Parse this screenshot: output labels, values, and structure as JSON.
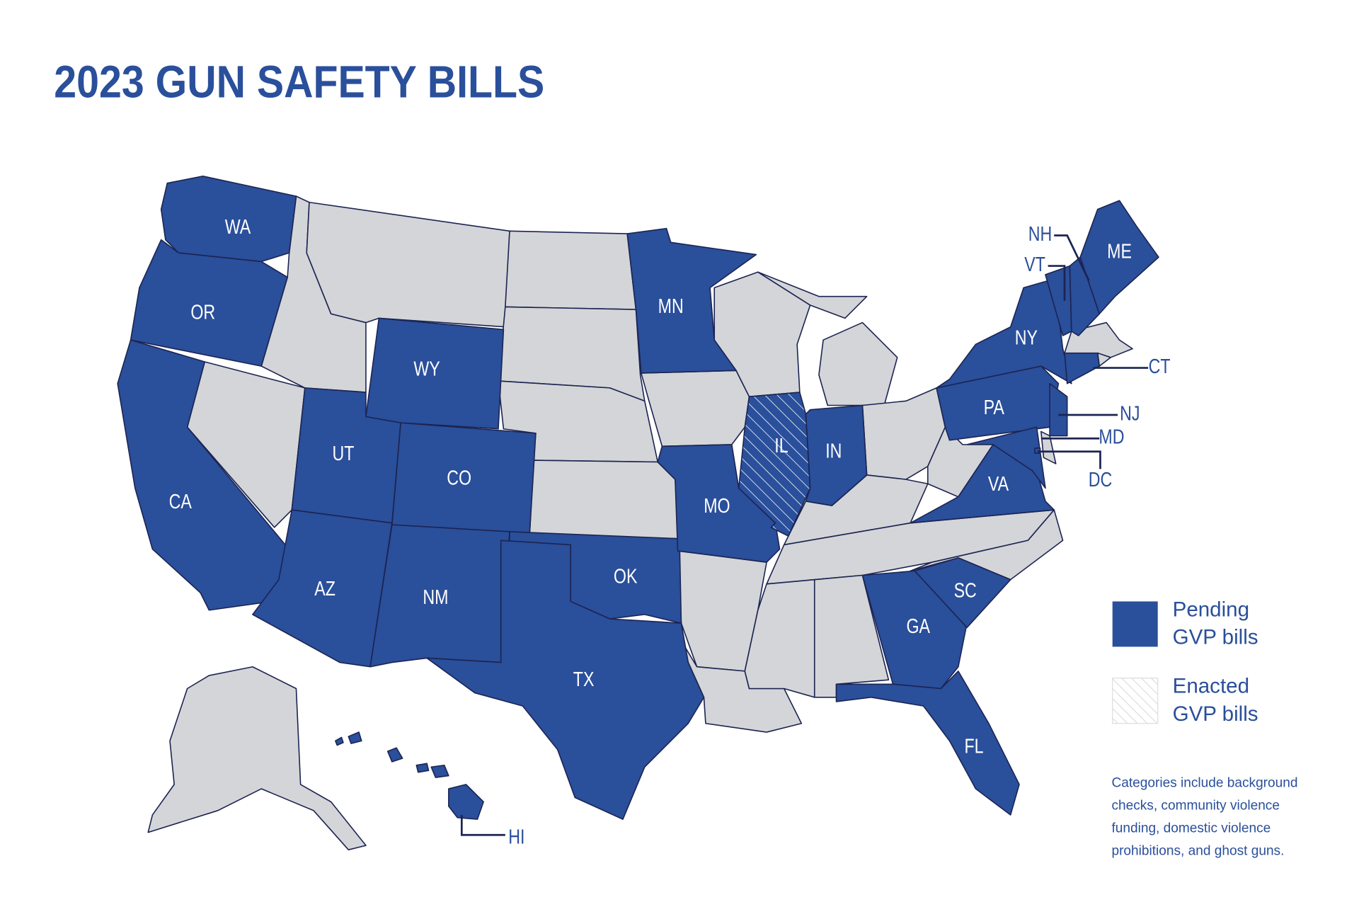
{
  "title": "2023 GUN SAFETY BILLS",
  "legend": [
    {
      "label": "Pending GVP bills",
      "status": "pending",
      "color": "#2a4f9b"
    },
    {
      "label": "Enacted GVP bills",
      "status": "enacted",
      "color": "#2a4f9b",
      "pattern": "hatch"
    }
  ],
  "note": "Categories include background checks, community violence funding, domestic violence prohibitions, and ghost guns.",
  "states": [
    {
      "abbr": "WA",
      "status": "pending"
    },
    {
      "abbr": "OR",
      "status": "pending"
    },
    {
      "abbr": "CA",
      "status": "pending"
    },
    {
      "abbr": "WY",
      "status": "pending"
    },
    {
      "abbr": "UT",
      "status": "pending"
    },
    {
      "abbr": "CO",
      "status": "pending"
    },
    {
      "abbr": "AZ",
      "status": "pending"
    },
    {
      "abbr": "NM",
      "status": "pending"
    },
    {
      "abbr": "OK",
      "status": "pending"
    },
    {
      "abbr": "TX",
      "status": "pending"
    },
    {
      "abbr": "MN",
      "status": "pending"
    },
    {
      "abbr": "MO",
      "status": "pending"
    },
    {
      "abbr": "IL",
      "status": "enacted"
    },
    {
      "abbr": "IN",
      "status": "pending"
    },
    {
      "abbr": "GA",
      "status": "pending"
    },
    {
      "abbr": "FL",
      "status": "pending"
    },
    {
      "abbr": "SC",
      "status": "pending"
    },
    {
      "abbr": "VA",
      "status": "pending"
    },
    {
      "abbr": "PA",
      "status": "pending"
    },
    {
      "abbr": "NY",
      "status": "pending"
    },
    {
      "abbr": "NJ",
      "status": "pending"
    },
    {
      "abbr": "MD",
      "status": "pending"
    },
    {
      "abbr": "DC",
      "status": "pending"
    },
    {
      "abbr": "VT",
      "status": "pending"
    },
    {
      "abbr": "NH",
      "status": "pending"
    },
    {
      "abbr": "ME",
      "status": "pending"
    },
    {
      "abbr": "CT",
      "status": "pending"
    },
    {
      "abbr": "HI",
      "status": "pending"
    }
  ]
}
